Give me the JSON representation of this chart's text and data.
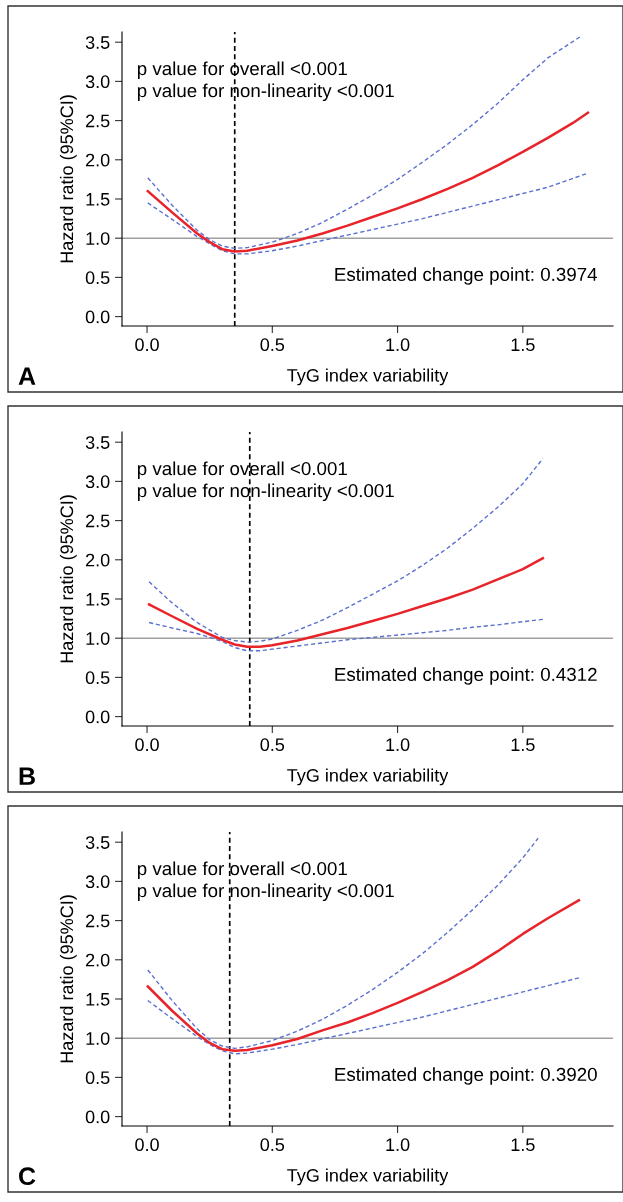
{
  "chart_data": [
    {
      "type": "line",
      "xlabel": "TyG index variability",
      "ylabel": "Hazard ratio (95%CI)",
      "annotations": [
        "p value for overall <0.001",
        "p value for non-linearity <0.001",
        "Estimated change point: 0.3974",
        "A"
      ],
      "xlim": [
        -0.1,
        1.86
      ],
      "ylim": [
        -0.12,
        3.63
      ],
      "xticks": [
        {
          "value": 0,
          "label": "0.0"
        },
        {
          "value": 0.5,
          "label": "0.5"
        },
        {
          "value": 1,
          "label": "1.0"
        },
        {
          "value": 1.5,
          "label": "1.5"
        }
      ],
      "yticks": [
        {
          "value": 0,
          "label": "0.0"
        },
        {
          "value": 0.5,
          "label": "0.5"
        },
        {
          "value": 1,
          "label": "1.0"
        },
        {
          "value": 1.5,
          "label": "1.5"
        },
        {
          "value": 2,
          "label": "2.0"
        },
        {
          "value": 2.5,
          "label": "2.5"
        },
        {
          "value": 3,
          "label": "3.0"
        },
        {
          "value": 3.5,
          "label": "3.5"
        }
      ],
      "ref_lines": [
        {
          "axis": "y",
          "value": 1,
          "color": "#a0a0a0",
          "line_style": "solid"
        },
        {
          "axis": "x",
          "value": 0.35,
          "color": "#000000",
          "line_style": "dashed"
        }
      ],
      "grid": false,
      "legend": false,
      "marker": "none",
      "series": [
        {
          "color": "#e8242b",
          "line_style": "solid",
          "x": [
            0.003,
            0.1,
            0.2,
            0.25,
            0.3,
            0.35,
            0.4,
            0.5,
            0.6,
            0.7,
            0.8,
            0.9,
            1.0,
            1.1,
            1.2,
            1.3,
            1.4,
            1.5,
            1.6,
            1.7,
            1.76
          ],
          "values": [
            1.6,
            1.33,
            1.06,
            0.95,
            0.86,
            0.83,
            0.84,
            0.9,
            0.97,
            1.06,
            1.16,
            1.27,
            1.38,
            1.5,
            1.63,
            1.77,
            1.93,
            2.1,
            2.28,
            2.47,
            2.6
          ]
        },
        {
          "color": "#5b6fd0",
          "line_style": "dashed",
          "x": [
            0.003,
            0.1,
            0.2,
            0.25,
            0.3,
            0.35,
            0.4,
            0.5,
            0.6,
            0.7,
            0.8,
            0.9,
            1.0,
            1.1,
            1.2,
            1.3,
            1.4,
            1.5,
            1.6,
            1.734
          ],
          "values": [
            1.77,
            1.42,
            1.1,
            0.98,
            0.9,
            0.87,
            0.88,
            0.95,
            1.06,
            1.2,
            1.37,
            1.55,
            1.75,
            1.97,
            2.2,
            2.45,
            2.72,
            3.02,
            3.3,
            3.58
          ]
        },
        {
          "color": "#5b6fd0",
          "line_style": "dashed",
          "x": [
            0.003,
            0.1,
            0.2,
            0.25,
            0.3,
            0.35,
            0.4,
            0.5,
            0.6,
            0.7,
            0.8,
            0.9,
            1.0,
            1.1,
            1.2,
            1.3,
            1.4,
            1.5,
            1.6,
            1.76
          ],
          "values": [
            1.45,
            1.24,
            1.02,
            0.93,
            0.84,
            0.8,
            0.8,
            0.84,
            0.9,
            0.97,
            1.04,
            1.11,
            1.18,
            1.25,
            1.33,
            1.41,
            1.49,
            1.57,
            1.65,
            1.83
          ]
        }
      ]
    },
    {
      "type": "line",
      "xlabel": "TyG index variability",
      "ylabel": "Hazard ratio (95%CI)",
      "annotations": [
        "p value for overall <0.001",
        "p value for non-linearity <0.001",
        "Estimated change point: 0.4312",
        "B"
      ],
      "xlim": [
        -0.1,
        1.86
      ],
      "ylim": [
        -0.12,
        3.63
      ],
      "xticks": [
        {
          "value": 0,
          "label": "0.0"
        },
        {
          "value": 0.5,
          "label": "0.5"
        },
        {
          "value": 1,
          "label": "1.0"
        },
        {
          "value": 1.5,
          "label": "1.5"
        }
      ],
      "yticks": [
        {
          "value": 0,
          "label": "0.0"
        },
        {
          "value": 0.5,
          "label": "0.5"
        },
        {
          "value": 1,
          "label": "1.0"
        },
        {
          "value": 1.5,
          "label": "1.5"
        },
        {
          "value": 2,
          "label": "2.0"
        },
        {
          "value": 2.5,
          "label": "2.5"
        },
        {
          "value": 3,
          "label": "3.0"
        },
        {
          "value": 3.5,
          "label": "3.5"
        }
      ],
      "ref_lines": [
        {
          "axis": "y",
          "value": 1,
          "color": "#a0a0a0",
          "line_style": "solid"
        },
        {
          "axis": "x",
          "value": 0.41,
          "color": "#000000",
          "line_style": "dashed"
        }
      ],
      "grid": false,
      "legend": false,
      "marker": "none",
      "series": [
        {
          "color": "#e8242b",
          "line_style": "solid",
          "x": [
            0.008,
            0.1,
            0.2,
            0.3,
            0.35,
            0.4,
            0.45,
            0.5,
            0.6,
            0.7,
            0.8,
            0.9,
            1.0,
            1.1,
            1.2,
            1.3,
            1.4,
            1.5,
            1.58
          ],
          "values": [
            1.43,
            1.28,
            1.12,
            0.98,
            0.92,
            0.89,
            0.89,
            0.91,
            0.97,
            1.05,
            1.13,
            1.22,
            1.31,
            1.41,
            1.51,
            1.62,
            1.75,
            1.88,
            2.02
          ]
        },
        {
          "color": "#5b6fd0",
          "line_style": "dashed",
          "x": [
            0.008,
            0.1,
            0.2,
            0.3,
            0.35,
            0.4,
            0.45,
            0.5,
            0.6,
            0.7,
            0.8,
            0.9,
            1.0,
            1.1,
            1.2,
            1.3,
            1.4,
            1.5,
            1.58
          ],
          "values": [
            1.72,
            1.45,
            1.2,
            1.01,
            0.97,
            0.95,
            0.96,
            0.99,
            1.1,
            1.23,
            1.39,
            1.56,
            1.73,
            1.93,
            2.15,
            2.4,
            2.67,
            2.97,
            3.29
          ]
        },
        {
          "color": "#5b6fd0",
          "line_style": "dashed",
          "x": [
            0.008,
            0.1,
            0.2,
            0.3,
            0.35,
            0.4,
            0.45,
            0.5,
            0.6,
            0.7,
            0.8,
            0.9,
            1.0,
            1.1,
            1.2,
            1.3,
            1.4,
            1.5,
            1.58
          ],
          "values": [
            1.2,
            1.13,
            1.06,
            0.96,
            0.88,
            0.84,
            0.84,
            0.86,
            0.9,
            0.94,
            0.98,
            1.01,
            1.04,
            1.07,
            1.1,
            1.14,
            1.17,
            1.21,
            1.24
          ]
        }
      ]
    },
    {
      "type": "line",
      "xlabel": "TyG index variability",
      "ylabel": "Hazard ratio (95%CI)",
      "annotations": [
        "p value for overall <0.001",
        "p value for non-linearity <0.001",
        "Estimated change point: 0.3920",
        "C"
      ],
      "xlim": [
        -0.1,
        1.86
      ],
      "ylim": [
        -0.12,
        3.63
      ],
      "xticks": [
        {
          "value": 0,
          "label": "0.0"
        },
        {
          "value": 0.5,
          "label": "0.5"
        },
        {
          "value": 1,
          "label": "1.0"
        },
        {
          "value": 1.5,
          "label": "1.5"
        }
      ],
      "yticks": [
        {
          "value": 0,
          "label": "0.0"
        },
        {
          "value": 0.5,
          "label": "0.5"
        },
        {
          "value": 1,
          "label": "1.0"
        },
        {
          "value": 1.5,
          "label": "1.5"
        },
        {
          "value": 2,
          "label": "2.0"
        },
        {
          "value": 2.5,
          "label": "2.5"
        },
        {
          "value": 3,
          "label": "3.0"
        },
        {
          "value": 3.5,
          "label": "3.5"
        }
      ],
      "ref_lines": [
        {
          "axis": "y",
          "value": 1,
          "color": "#a0a0a0",
          "line_style": "solid"
        },
        {
          "axis": "x",
          "value": 0.33,
          "color": "#000000",
          "line_style": "dashed"
        }
      ],
      "grid": false,
      "legend": false,
      "marker": "none",
      "series": [
        {
          "color": "#e8242b",
          "line_style": "solid",
          "x": [
            0.003,
            0.1,
            0.2,
            0.25,
            0.3,
            0.35,
            0.4,
            0.5,
            0.6,
            0.7,
            0.8,
            0.9,
            1.0,
            1.1,
            1.2,
            1.3,
            1.4,
            1.5,
            1.6,
            1.724
          ],
          "values": [
            1.66,
            1.35,
            1.06,
            0.94,
            0.86,
            0.84,
            0.85,
            0.91,
            0.99,
            1.1,
            1.2,
            1.32,
            1.45,
            1.59,
            1.74,
            1.91,
            2.11,
            2.33,
            2.53,
            2.76
          ]
        },
        {
          "color": "#5b6fd0",
          "line_style": "dashed",
          "x": [
            0.003,
            0.1,
            0.2,
            0.25,
            0.3,
            0.35,
            0.4,
            0.5,
            0.6,
            0.7,
            0.8,
            0.9,
            1.0,
            1.1,
            1.2,
            1.3,
            1.4,
            1.5,
            1.561
          ],
          "values": [
            1.87,
            1.48,
            1.12,
            0.98,
            0.9,
            0.87,
            0.89,
            0.97,
            1.09,
            1.24,
            1.42,
            1.62,
            1.84,
            2.08,
            2.35,
            2.64,
            2.95,
            3.3,
            3.55
          ]
        },
        {
          "color": "#5b6fd0",
          "line_style": "dashed",
          "x": [
            0.003,
            0.1,
            0.2,
            0.25,
            0.3,
            0.35,
            0.4,
            0.5,
            0.6,
            0.7,
            0.8,
            0.9,
            1.0,
            1.1,
            1.2,
            1.3,
            1.4,
            1.5,
            1.6,
            1.724
          ],
          "values": [
            1.48,
            1.25,
            1.02,
            0.92,
            0.84,
            0.8,
            0.81,
            0.86,
            0.92,
            0.99,
            1.06,
            1.13,
            1.2,
            1.27,
            1.35,
            1.43,
            1.51,
            1.59,
            1.67,
            1.77
          ]
        }
      ]
    }
  ]
}
